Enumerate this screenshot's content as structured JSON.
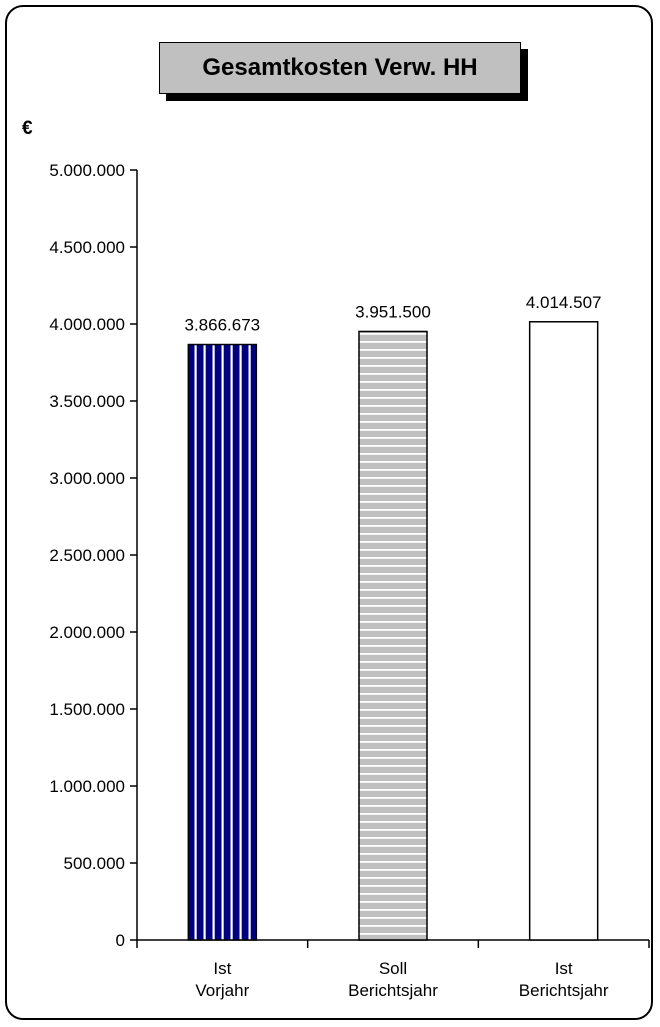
{
  "chart_data": {
    "type": "bar",
    "title": "Gesamtkosten Verw. HH",
    "unit_label": "€",
    "categories": [
      [
        "Ist",
        "Vorjahr"
      ],
      [
        "Soll",
        "Berichtsjahr"
      ],
      [
        "Ist",
        "Berichtsjahr"
      ]
    ],
    "values": [
      3866673,
      3951500,
      4014507
    ],
    "value_labels": [
      "3.866.673",
      "3.951.500",
      "4.014.507"
    ],
    "bar_styles": [
      {
        "fill": "#000080",
        "pattern": "vertical-stripes",
        "stripe": "#ffffff"
      },
      {
        "fill": "#c0c0c0",
        "pattern": "horizontal-stripes",
        "stripe": "#ffffff"
      },
      {
        "fill": "#ffffff",
        "pattern": "none",
        "stripe": "#ffffff"
      }
    ],
    "ylim": [
      0,
      5000000
    ],
    "yticks": [
      0,
      500000,
      1000000,
      1500000,
      2000000,
      2500000,
      3000000,
      3500000,
      4000000,
      4500000,
      5000000
    ],
    "ytick_labels": [
      "0",
      "500.000",
      "1.000.000",
      "1.500.000",
      "2.000.000",
      "2.500.000",
      "3.000.000",
      "3.500.000",
      "4.000.000",
      "4.500.000",
      "5.000.000"
    ],
    "grid": false,
    "legend": "none"
  }
}
